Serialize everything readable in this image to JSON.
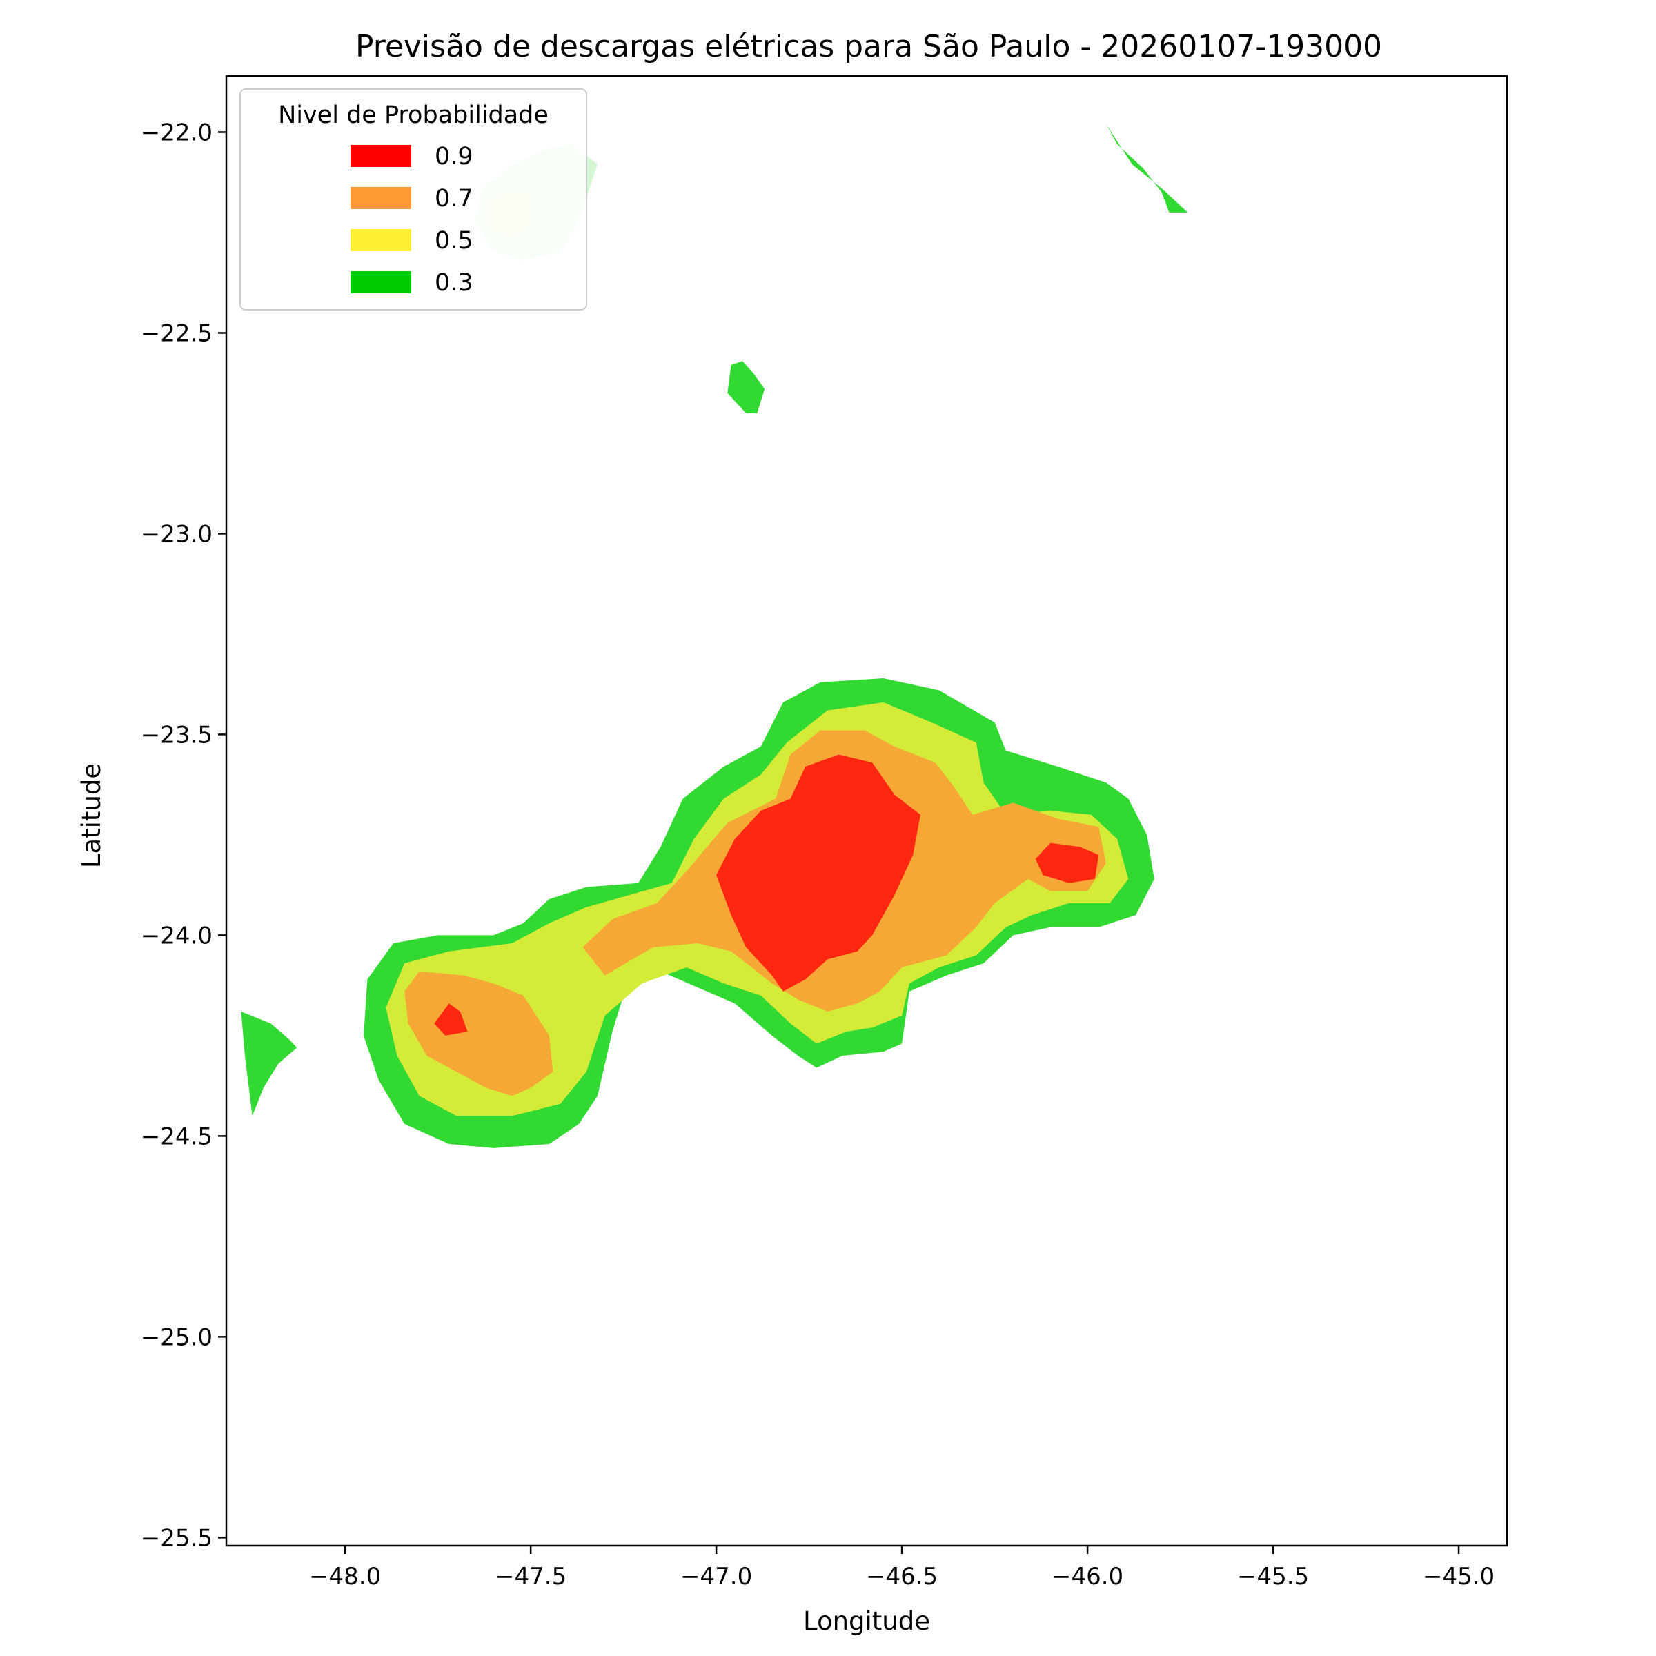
{
  "chart_data": {
    "type": "contour",
    "title": "Previsão de descargas elétricas para São Paulo - 20260107-193000",
    "xlabel": "Longitude",
    "ylabel": "Latitude",
    "xlim": [
      -48.32,
      -44.87
    ],
    "ylim": [
      -25.52,
      -21.86
    ],
    "xticks": [
      -48.0,
      -47.5,
      -47.0,
      -46.5,
      -46.0,
      -45.5,
      -45.0
    ],
    "xtick_labels": [
      "−48.0",
      "−47.5",
      "−47.0",
      "−46.5",
      "−46.0",
      "−45.5",
      "−45.0"
    ],
    "yticks": [
      -22.0,
      -22.5,
      -23.0,
      -23.5,
      -24.0,
      -24.5,
      -25.0,
      -25.5
    ],
    "ytick_labels": [
      "−22.0",
      "−22.5",
      "−23.0",
      "−23.5",
      "−24.0",
      "−24.5",
      "−25.0",
      "−25.5"
    ],
    "grid": false,
    "legend": {
      "title": "Nivel de Probabilidade",
      "placement": "top-left",
      "entries": [
        {
          "label": "0.9",
          "color": "#ff0000"
        },
        {
          "label": "0.7",
          "color": "#ff9933"
        },
        {
          "label": "0.5",
          "color": "#ffee33"
        },
        {
          "label": "0.3",
          "color": "#00cc00"
        }
      ]
    },
    "level_colors": {
      "0.3": "#33d933",
      "0.5": "#d4ec38",
      "0.7": "#f5a835",
      "0.9": "#ff2710"
    },
    "regions": [
      {
        "level": "0.3",
        "color": "#33d933",
        "opacity": 1,
        "points": [
          [
            -47.21,
            -23.87
          ],
          [
            -47.15,
            -23.78
          ],
          [
            -47.09,
            -23.66
          ],
          [
            -46.98,
            -23.58
          ],
          [
            -46.88,
            -23.53
          ],
          [
            -46.82,
            -23.42
          ],
          [
            -46.72,
            -23.37
          ],
          [
            -46.55,
            -23.36
          ],
          [
            -46.4,
            -23.39
          ],
          [
            -46.25,
            -23.47
          ],
          [
            -46.22,
            -23.54
          ],
          [
            -46.08,
            -23.58
          ],
          [
            -45.95,
            -23.62
          ],
          [
            -45.89,
            -23.66
          ],
          [
            -45.84,
            -23.75
          ],
          [
            -45.82,
            -23.86
          ],
          [
            -45.87,
            -23.95
          ],
          [
            -45.97,
            -23.98
          ],
          [
            -46.1,
            -23.98
          ],
          [
            -46.2,
            -24.0
          ],
          [
            -46.28,
            -24.07
          ],
          [
            -46.38,
            -24.1
          ],
          [
            -46.48,
            -24.14
          ],
          [
            -46.5,
            -24.27
          ],
          [
            -46.55,
            -24.29
          ],
          [
            -46.66,
            -24.3
          ],
          [
            -46.73,
            -24.33
          ],
          [
            -46.78,
            -24.3
          ],
          [
            -46.85,
            -24.25
          ],
          [
            -46.95,
            -24.17
          ],
          [
            -47.05,
            -24.13
          ],
          [
            -47.15,
            -24.09
          ],
          [
            -47.25,
            -24.15
          ],
          [
            -47.28,
            -24.24
          ],
          [
            -47.32,
            -24.4
          ],
          [
            -47.37,
            -24.47
          ],
          [
            -47.45,
            -24.52
          ],
          [
            -47.6,
            -24.53
          ],
          [
            -47.72,
            -24.52
          ],
          [
            -47.84,
            -24.47
          ],
          [
            -47.91,
            -24.36
          ],
          [
            -47.95,
            -24.25
          ],
          [
            -47.94,
            -24.11
          ],
          [
            -47.87,
            -24.02
          ],
          [
            -47.75,
            -24.0
          ],
          [
            -47.6,
            -24.0
          ],
          [
            -47.52,
            -23.97
          ],
          [
            -47.45,
            -23.91
          ],
          [
            -47.35,
            -23.88
          ]
        ]
      },
      {
        "level": "0.5",
        "color": "#d4ec38",
        "opacity": 1,
        "points": [
          [
            -47.12,
            -23.87
          ],
          [
            -47.06,
            -23.76
          ],
          [
            -46.98,
            -23.66
          ],
          [
            -46.88,
            -23.6
          ],
          [
            -46.81,
            -23.52
          ],
          [
            -46.7,
            -23.44
          ],
          [
            -46.55,
            -23.42
          ],
          [
            -46.42,
            -23.47
          ],
          [
            -46.3,
            -23.52
          ],
          [
            -46.28,
            -23.62
          ],
          [
            -46.22,
            -23.7
          ],
          [
            -46.1,
            -23.69
          ],
          [
            -45.99,
            -23.7
          ],
          [
            -45.92,
            -23.76
          ],
          [
            -45.89,
            -23.86
          ],
          [
            -45.94,
            -23.92
          ],
          [
            -46.05,
            -23.92
          ],
          [
            -46.15,
            -23.95
          ],
          [
            -46.22,
            -23.98
          ],
          [
            -46.3,
            -24.05
          ],
          [
            -46.4,
            -24.08
          ],
          [
            -46.48,
            -24.12
          ],
          [
            -46.5,
            -24.2
          ],
          [
            -46.58,
            -24.23
          ],
          [
            -46.65,
            -24.24
          ],
          [
            -46.73,
            -24.27
          ],
          [
            -46.8,
            -24.22
          ],
          [
            -46.88,
            -24.15
          ],
          [
            -46.98,
            -24.12
          ],
          [
            -47.08,
            -24.08
          ],
          [
            -47.2,
            -24.12
          ],
          [
            -47.3,
            -24.2
          ],
          [
            -47.35,
            -24.34
          ],
          [
            -47.42,
            -24.42
          ],
          [
            -47.55,
            -24.45
          ],
          [
            -47.7,
            -24.45
          ],
          [
            -47.8,
            -24.4
          ],
          [
            -47.86,
            -24.3
          ],
          [
            -47.89,
            -24.18
          ],
          [
            -47.84,
            -24.07
          ],
          [
            -47.72,
            -24.04
          ],
          [
            -47.55,
            -24.02
          ],
          [
            -47.45,
            -23.97
          ],
          [
            -47.35,
            -23.93
          ]
        ]
      },
      {
        "level": "0.7",
        "color": "#f5a835",
        "opacity": 1,
        "points": [
          [
            -47.36,
            -24.03
          ],
          [
            -47.28,
            -23.96
          ],
          [
            -47.16,
            -23.92
          ],
          [
            -47.08,
            -23.84
          ],
          [
            -46.97,
            -23.72
          ],
          [
            -46.84,
            -23.66
          ],
          [
            -46.8,
            -23.55
          ],
          [
            -46.72,
            -23.49
          ],
          [
            -46.6,
            -23.49
          ],
          [
            -46.52,
            -23.53
          ],
          [
            -46.41,
            -23.57
          ],
          [
            -46.36,
            -23.63
          ],
          [
            -46.31,
            -23.7
          ],
          [
            -46.2,
            -23.67
          ],
          [
            -46.08,
            -23.71
          ],
          [
            -45.97,
            -23.73
          ],
          [
            -45.95,
            -23.82
          ],
          [
            -46.0,
            -23.89
          ],
          [
            -46.1,
            -23.89
          ],
          [
            -46.16,
            -23.86
          ],
          [
            -46.25,
            -23.92
          ],
          [
            -46.3,
            -23.98
          ],
          [
            -46.38,
            -24.05
          ],
          [
            -46.5,
            -24.08
          ],
          [
            -46.56,
            -24.14
          ],
          [
            -46.62,
            -24.17
          ],
          [
            -46.7,
            -24.19
          ],
          [
            -46.78,
            -24.16
          ],
          [
            -46.85,
            -24.12
          ],
          [
            -46.96,
            -24.04
          ],
          [
            -47.05,
            -24.02
          ],
          [
            -47.17,
            -24.03
          ],
          [
            -47.3,
            -24.1
          ]
        ]
      },
      {
        "level": "0.7",
        "color": "#f5a835",
        "opacity": 1,
        "points": [
          [
            -47.8,
            -24.09
          ],
          [
            -47.68,
            -24.1
          ],
          [
            -47.6,
            -24.12
          ],
          [
            -47.52,
            -24.15
          ],
          [
            -47.45,
            -24.25
          ],
          [
            -47.44,
            -24.34
          ],
          [
            -47.5,
            -24.38
          ],
          [
            -47.55,
            -24.4
          ],
          [
            -47.62,
            -24.38
          ],
          [
            -47.7,
            -24.34
          ],
          [
            -47.78,
            -24.3
          ],
          [
            -47.83,
            -24.22
          ],
          [
            -47.84,
            -24.14
          ]
        ]
      },
      {
        "level": "0.9",
        "color": "#ff2710",
        "opacity": 1,
        "points": [
          [
            -46.95,
            -23.76
          ],
          [
            -46.88,
            -23.69
          ],
          [
            -46.8,
            -23.66
          ],
          [
            -46.76,
            -23.58
          ],
          [
            -46.67,
            -23.55
          ],
          [
            -46.58,
            -23.57
          ],
          [
            -46.52,
            -23.65
          ],
          [
            -46.45,
            -23.7
          ],
          [
            -46.47,
            -23.8
          ],
          [
            -46.52,
            -23.9
          ],
          [
            -46.58,
            -24.0
          ],
          [
            -46.62,
            -24.04
          ],
          [
            -46.7,
            -24.06
          ],
          [
            -46.76,
            -24.11
          ],
          [
            -46.82,
            -24.14
          ],
          [
            -46.85,
            -24.1
          ],
          [
            -46.92,
            -24.03
          ],
          [
            -46.96,
            -23.95
          ],
          [
            -47.0,
            -23.85
          ]
        ]
      },
      {
        "level": "0.9",
        "color": "#ff2710",
        "opacity": 1,
        "points": [
          [
            -46.1,
            -23.77
          ],
          [
            -46.02,
            -23.78
          ],
          [
            -45.97,
            -23.8
          ],
          [
            -45.98,
            -23.86
          ],
          [
            -46.05,
            -23.87
          ],
          [
            -46.12,
            -23.85
          ],
          [
            -46.14,
            -23.81
          ]
        ]
      },
      {
        "level": "0.9",
        "color": "#ff2710",
        "opacity": 1,
        "points": [
          [
            -47.72,
            -24.17
          ],
          [
            -47.69,
            -24.19
          ],
          [
            -47.67,
            -24.24
          ],
          [
            -47.73,
            -24.25
          ],
          [
            -47.76,
            -24.22
          ]
        ]
      },
      {
        "level": "0.3",
        "color": "#33d933",
        "opacity": 1,
        "points": [
          [
            -46.96,
            -22.58
          ],
          [
            -46.93,
            -22.57
          ],
          [
            -46.9,
            -22.6
          ],
          [
            -46.87,
            -22.64
          ],
          [
            -46.89,
            -22.7
          ],
          [
            -46.92,
            -22.7
          ],
          [
            -46.94,
            -22.68
          ],
          [
            -46.97,
            -22.65
          ]
        ]
      },
      {
        "level": "0.3",
        "color": "#33d933",
        "opacity": 1,
        "points": [
          [
            -45.95,
            -21.98
          ],
          [
            -45.92,
            -22.03
          ],
          [
            -45.85,
            -22.09
          ],
          [
            -45.8,
            -22.15
          ],
          [
            -45.78,
            -22.2
          ],
          [
            -45.73,
            -22.2
          ],
          [
            -45.8,
            -22.14
          ],
          [
            -45.88,
            -22.08
          ]
        ]
      },
      {
        "level": "0.3",
        "color": "#33d933",
        "opacity": 1,
        "points": [
          [
            -48.28,
            -24.19
          ],
          [
            -48.2,
            -24.22
          ],
          [
            -48.15,
            -24.26
          ],
          [
            -48.13,
            -24.28
          ],
          [
            -48.18,
            -24.32
          ],
          [
            -48.22,
            -24.38
          ],
          [
            -48.25,
            -24.45
          ],
          [
            -48.27,
            -24.3
          ]
        ]
      },
      {
        "level": "0.3",
        "color": "#33d933",
        "opacity": 0.22,
        "points": [
          [
            -47.39,
            -22.03
          ],
          [
            -47.32,
            -22.08
          ],
          [
            -47.37,
            -22.22
          ],
          [
            -47.42,
            -22.3
          ],
          [
            -47.53,
            -22.32
          ],
          [
            -47.61,
            -22.29
          ],
          [
            -47.65,
            -22.22
          ],
          [
            -47.63,
            -22.14
          ],
          [
            -47.55,
            -22.08
          ],
          [
            -47.45,
            -22.04
          ]
        ]
      },
      {
        "level": "0.5",
        "color": "#ffee33",
        "opacity": 0.18,
        "points": [
          [
            -47.49,
            -22.15
          ],
          [
            -47.56,
            -22.14
          ],
          [
            -47.62,
            -22.17
          ],
          [
            -47.62,
            -22.24
          ],
          [
            -47.55,
            -22.27
          ],
          [
            -47.49,
            -22.23
          ]
        ]
      }
    ]
  }
}
